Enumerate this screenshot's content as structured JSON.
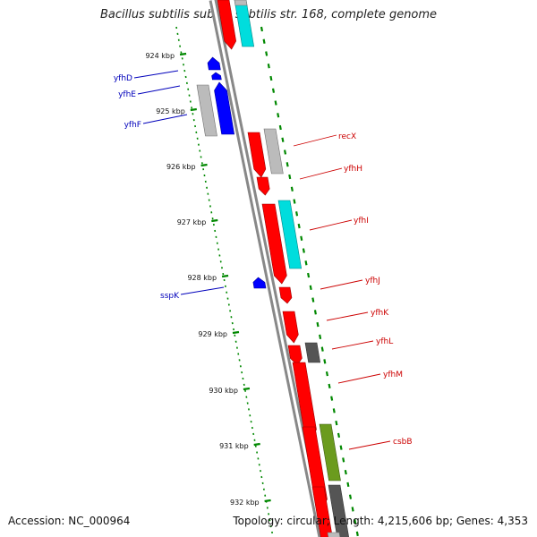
{
  "title": "Bacillus subtilis subsp. subtilis str. 168, complete genome",
  "footer": {
    "accession": "Accession: NC_000964",
    "summary": "Topology: circular; Length: 4,215,606 bp; Genes: 4,353"
  },
  "colors": {
    "minus_strand_label": "#0000bb",
    "plus_strand_label": "#cc0000",
    "cds_forward": "#ff0000",
    "cds_reverse": "#0000ff",
    "gene_gray": "#bbbbbb",
    "gene_cyan": "#00dddd",
    "gene_darkgray": "#555555",
    "gene_olive": "#6b9b1e",
    "dotted_track": "#008800",
    "backbone": "#888888"
  },
  "scale_labels": [
    "924 kbp",
    "925 kbp",
    "926 kbp",
    "927 kbp",
    "928 kbp",
    "929 kbp",
    "930 kbp",
    "931 kbp",
    "932 kbp"
  ],
  "genes": [
    {
      "name": "yfhD",
      "strand": "minus"
    },
    {
      "name": "yfhE",
      "strand": "minus"
    },
    {
      "name": "yfhF",
      "strand": "minus"
    },
    {
      "name": "recX",
      "strand": "plus"
    },
    {
      "name": "yfhH",
      "strand": "plus"
    },
    {
      "name": "yfhI",
      "strand": "plus"
    },
    {
      "name": "sspK",
      "strand": "minus"
    },
    {
      "name": "yfhJ",
      "strand": "plus"
    },
    {
      "name": "yfhK",
      "strand": "plus"
    },
    {
      "name": "yfhL",
      "strand": "plus"
    },
    {
      "name": "yfhM",
      "strand": "plus"
    },
    {
      "name": "csbB",
      "strand": "plus"
    }
  ]
}
